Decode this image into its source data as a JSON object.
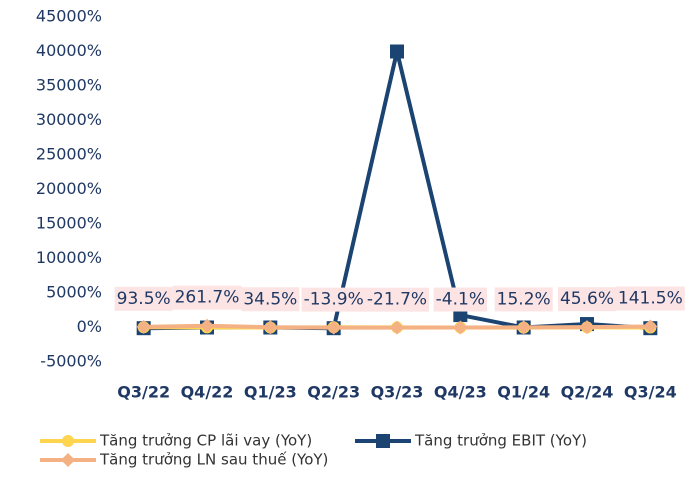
{
  "chart_data": {
    "type": "line",
    "categories": [
      "Q3/22",
      "Q4/22",
      "Q1/23",
      "Q2/23",
      "Q3/23",
      "Q4/23",
      "Q1/24",
      "Q2/24",
      "Q3/24"
    ],
    "series": [
      {
        "name": "Tăng trưởng CP lãi vay (YoY)",
        "color": "#FFD54F",
        "marker": "circle",
        "values": [
          40,
          20,
          -10,
          30,
          10,
          0,
          -20,
          10,
          5
        ]
      },
      {
        "name": "Tăng trưởng EBIT (YoY)",
        "color": "#1B4472",
        "marker": "square",
        "values": [
          -100,
          0,
          0,
          -100,
          40000,
          1800,
          0,
          500,
          -100
        ]
      },
      {
        "name": "Tăng trưởng LN sau thuế (YoY)",
        "color": "#F4B183",
        "marker": "diamond",
        "values": [
          93.5,
          261.7,
          34.5,
          -13.9,
          -21.7,
          -4.1,
          15.2,
          45.6,
          141.5
        ],
        "value_labels": [
          "93.5%",
          "261.7%",
          "34.5%",
          "-13.9%",
          "-21.7%",
          "-4.1%",
          "15.2%",
          "45.6%",
          "141.5%"
        ]
      }
    ],
    "ylim": [
      -5000,
      45000
    ],
    "yticks": [
      {
        "value": -5000,
        "label": "-5000%"
      },
      {
        "value": 0,
        "label": "0%"
      },
      {
        "value": 5000,
        "label": "5000%"
      },
      {
        "value": 10000,
        "label": "10000%"
      },
      {
        "value": 15000,
        "label": "15000%"
      },
      {
        "value": 20000,
        "label": "20000%"
      },
      {
        "value": 25000,
        "label": "25000%"
      },
      {
        "value": 30000,
        "label": "30000%"
      },
      {
        "value": 35000,
        "label": "35000%"
      },
      {
        "value": 40000,
        "label": "40000%"
      },
      {
        "value": 45000,
        "label": "45000%"
      }
    ],
    "grid": false
  }
}
